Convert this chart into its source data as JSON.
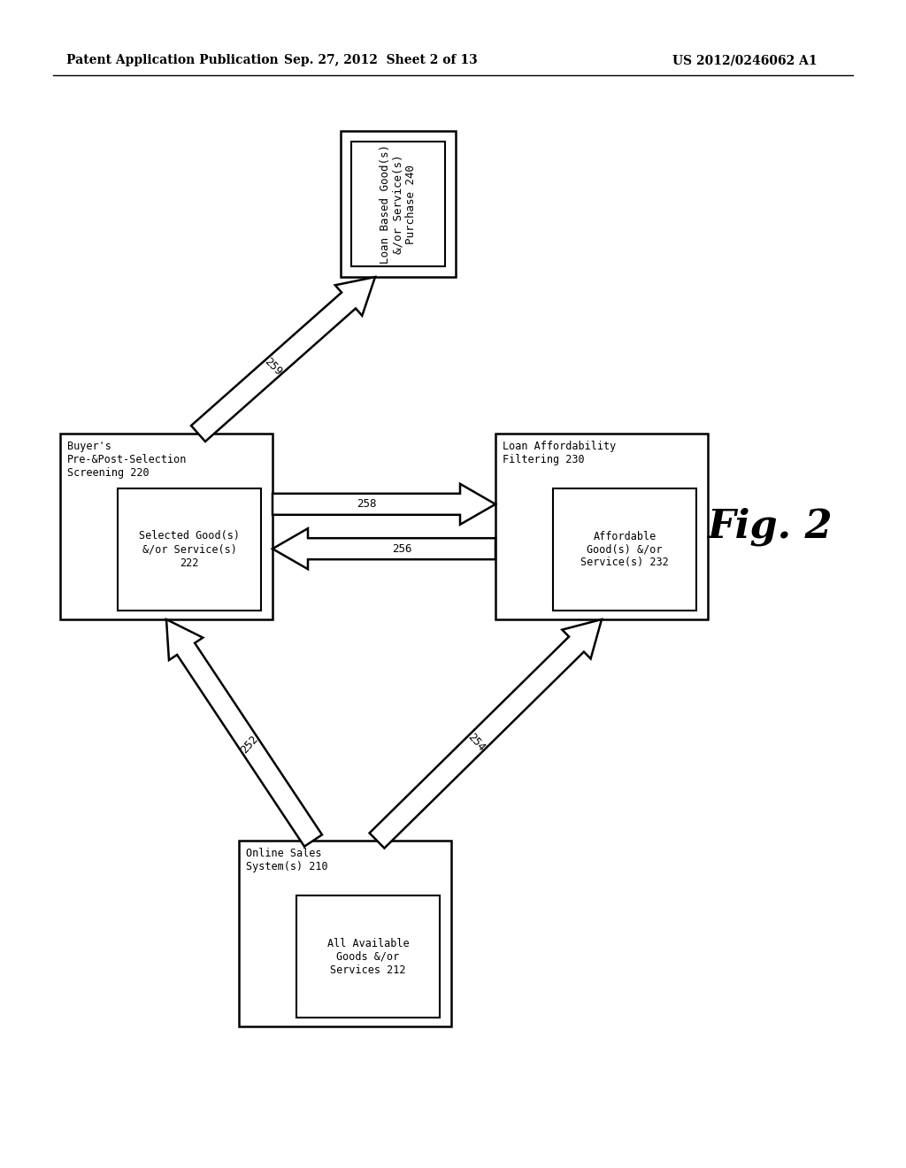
{
  "bg_color": "#ffffff",
  "header_left": "Patent Application Publication",
  "header_mid": "Sep. 27, 2012  Sheet 2 of 13",
  "header_right": "US 2012/0246062 A1",
  "fig_label": "Fig. 2",
  "figw": 10.24,
  "figh": 13.2,
  "dpi": 100
}
